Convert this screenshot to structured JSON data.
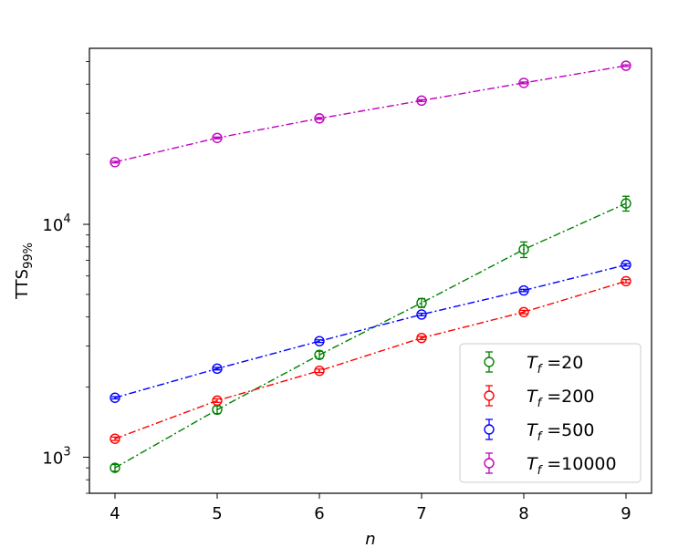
{
  "chart_data": {
    "type": "line",
    "xlabel": "n",
    "ylabel": "TTS",
    "ylabel_sub": "99%",
    "x": [
      4,
      5,
      6,
      7,
      8,
      9
    ],
    "xlim": [
      3.75,
      9.25
    ],
    "xticks": [
      "4",
      "5",
      "6",
      "7",
      "8",
      "9"
    ],
    "yscale": "log",
    "ylim": [
      700,
      57000
    ],
    "yticks": [
      {
        "base": "10",
        "exp": "3",
        "value": 1000
      },
      {
        "base": "10",
        "exp": "4",
        "value": 10000
      }
    ],
    "grid": false,
    "legend_position": "lower right",
    "series": [
      {
        "name": "T_f =20",
        "label_main": "T",
        "label_sub": "f",
        "label_val": " =20",
        "color": "#008000",
        "values": [
          900,
          1600,
          2750,
          4600,
          7800,
          12300
        ],
        "errors": [
          30,
          60,
          100,
          200,
          600,
          900
        ]
      },
      {
        "name": "T_f =200",
        "label_main": "T",
        "label_sub": "f",
        "label_val": " =200",
        "color": "#ff0000",
        "values": [
          1200,
          1750,
          2350,
          3250,
          4200,
          5700
        ],
        "errors": [
          20,
          30,
          40,
          50,
          70,
          90
        ]
      },
      {
        "name": "T_f =500",
        "label_main": "T",
        "label_sub": "f",
        "label_val": " =500",
        "color": "#0000ff",
        "values": [
          1800,
          2400,
          3150,
          4100,
          5200,
          6700
        ],
        "errors": [
          20,
          30,
          40,
          50,
          60,
          80
        ]
      },
      {
        "name": "T_f =10000",
        "label_main": "T",
        "label_sub": "f",
        "label_val": " =10000",
        "color": "#bf00bf",
        "values": [
          18500,
          23500,
          28500,
          34000,
          40500,
          48000
        ],
        "errors": [
          150,
          200,
          250,
          300,
          350,
          400
        ]
      }
    ]
  }
}
